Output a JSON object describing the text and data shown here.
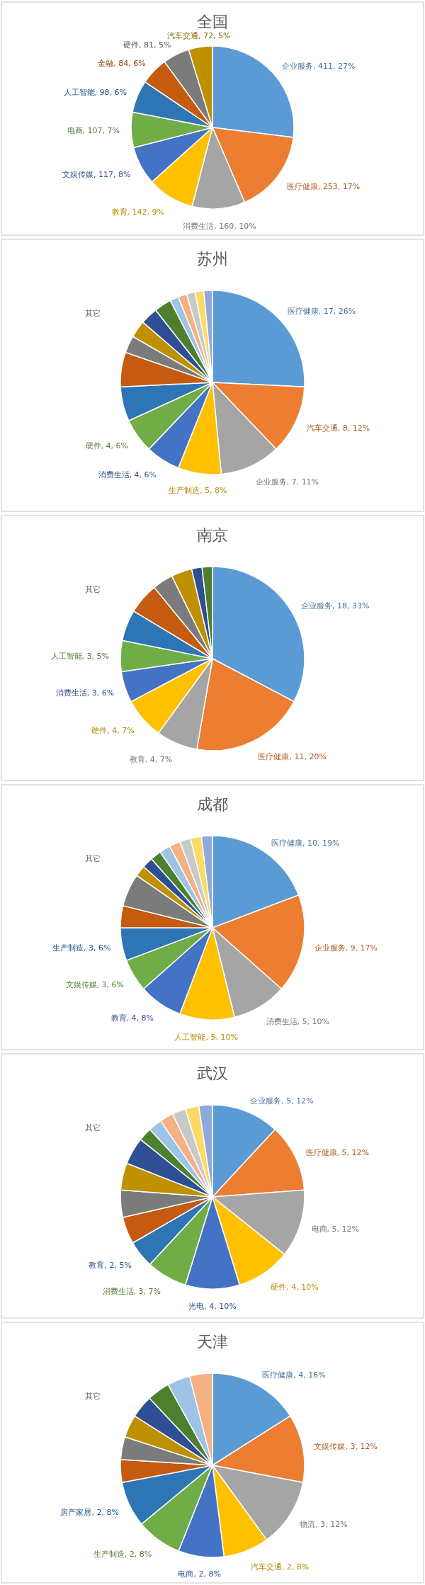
{
  "chart_data": [
    {
      "type": "pie",
      "title": "全国",
      "categories": [
        "企业服务",
        "医疗健康",
        "消费生活",
        "教育",
        "文娱传媒",
        "电商",
        "人工智能",
        "金融",
        "硬件",
        "汽车交通"
      ],
      "values": [
        411,
        253,
        160,
        142,
        117,
        107,
        98,
        84,
        81,
        72
      ],
      "colors": [
        "#5b9bd5",
        "#ed7d31",
        "#a5a5a5",
        "#ffc000",
        "#4472c4",
        "#70ad47",
        "#2e75b6",
        "#c55a11",
        "#7b7b7b",
        "#bf9000"
      ],
      "value_labels": [
        "411, 27%",
        "253, 17%",
        "160, 10%",
        "142, 9%",
        "117, 8%",
        "107, 7%",
        "98, 6%",
        "84, 6%",
        "81, 5%",
        "72, 5%"
      ]
    },
    {
      "type": "pie",
      "title": "苏州",
      "categories": [
        "医疗健康",
        "汽车交通",
        "企业服务",
        "生产制造",
        "消费生活",
        "硬件",
        null,
        null,
        null,
        null,
        null,
        null,
        null,
        null,
        null,
        null,
        null
      ],
      "values": [
        17,
        8,
        7,
        5,
        4,
        4,
        4,
        4,
        2,
        2,
        2,
        2,
        1,
        1,
        1,
        1,
        1
      ],
      "colors": [
        "#5b9bd5",
        "#ed7d31",
        "#a5a5a5",
        "#ffc000",
        "#4472c4",
        "#70ad47",
        "#2e75b6",
        "#c55a11",
        "#7b7b7b",
        "#bf9000",
        "#2f4f94",
        "#4d7f2f",
        "#9dc3e6",
        "#f4b183",
        "#c9c9c9",
        "#ffd966",
        "#8eaadb"
      ],
      "value_labels": [
        "17, 26%",
        "8, 12%",
        "7, 11%",
        "5, 8%",
        "4, 6%",
        "4, 6%",
        null,
        null,
        null,
        null,
        null,
        null,
        null,
        null,
        null,
        null,
        null
      ],
      "annotations": [
        "其它"
      ]
    },
    {
      "type": "pie",
      "title": "南京",
      "categories": [
        "企业服务",
        "医疗健康",
        "教育",
        "硬件",
        "消费生活",
        "人工智能",
        null,
        null,
        null,
        null,
        null,
        null
      ],
      "values": [
        18,
        11,
        4,
        4,
        3,
        3,
        3,
        3,
        2,
        2,
        1,
        1
      ],
      "colors": [
        "#5b9bd5",
        "#ed7d31",
        "#a5a5a5",
        "#ffc000",
        "#4472c4",
        "#70ad47",
        "#2e75b6",
        "#c55a11",
        "#7b7b7b",
        "#bf9000",
        "#2f4f94",
        "#4d7f2f"
      ],
      "value_labels": [
        "18, 33%",
        "11, 20%",
        "4, 7%",
        "4, 7%",
        "3, 6%",
        "3, 5%",
        null,
        null,
        null,
        null,
        null,
        null
      ],
      "annotations": [
        "其它"
      ]
    },
    {
      "type": "pie",
      "title": "成都",
      "categories": [
        "医疗健康",
        "企业服务",
        "消费生活",
        "人工智能",
        "教育",
        "文娱传媒",
        "生产制造",
        null,
        null,
        null,
        null,
        null,
        null,
        null,
        null,
        null,
        null
      ],
      "values": [
        10,
        9,
        5,
        5,
        4,
        3,
        3,
        2,
        3,
        1,
        1,
        1,
        1,
        1,
        1,
        1,
        1
      ],
      "colors": [
        "#5b9bd5",
        "#ed7d31",
        "#a5a5a5",
        "#ffc000",
        "#4472c4",
        "#70ad47",
        "#2e75b6",
        "#c55a11",
        "#7b7b7b",
        "#bf9000",
        "#2f4f94",
        "#4d7f2f",
        "#9dc3e6",
        "#f4b183",
        "#c9c9c9",
        "#ffd966",
        "#8eaadb"
      ],
      "value_labels": [
        "10, 19%",
        "9, 17%",
        "5, 10%",
        "5, 10%",
        "4, 8%",
        "3, 6%",
        "3, 6%",
        null,
        null,
        null,
        null,
        null,
        null,
        null,
        null,
        null,
        null
      ],
      "annotations": [
        "其它"
      ]
    },
    {
      "type": "pie",
      "title": "武汉",
      "categories": [
        "企业服务",
        "医疗健康",
        "电商",
        "硬件",
        "光电",
        "消费生活",
        "教育",
        null,
        null,
        null,
        null,
        null,
        null,
        null,
        null,
        null,
        null
      ],
      "values": [
        5,
        5,
        5,
        4,
        4,
        3,
        2,
        2,
        2,
        2,
        2,
        1,
        1,
        1,
        1,
        1,
        1
      ],
      "colors": [
        "#5b9bd5",
        "#ed7d31",
        "#a5a5a5",
        "#ffc000",
        "#4472c4",
        "#70ad47",
        "#2e75b6",
        "#c55a11",
        "#7b7b7b",
        "#bf9000",
        "#2f4f94",
        "#4d7f2f",
        "#9dc3e6",
        "#f4b183",
        "#c9c9c9",
        "#ffd966",
        "#8eaadb"
      ],
      "value_labels": [
        "5, 12%",
        "5, 12%",
        "5, 12%",
        "4, 10%",
        "4, 10%",
        "3, 7%",
        "2, 5%",
        null,
        null,
        null,
        null,
        null,
        null,
        null,
        null,
        null,
        null
      ],
      "annotations": [
        "其它"
      ]
    },
    {
      "type": "pie",
      "title": "天津",
      "categories": [
        "医疗健康",
        "文娱传媒",
        "物流",
        "汽车交通",
        "电商",
        "生产制造",
        "房产家居",
        null,
        null,
        null,
        null,
        null,
        null,
        null
      ],
      "values": [
        4,
        3,
        3,
        2,
        2,
        2,
        2,
        1,
        1,
        1,
        1,
        1,
        1,
        1
      ],
      "colors": [
        "#5b9bd5",
        "#ed7d31",
        "#a5a5a5",
        "#ffc000",
        "#4472c4",
        "#70ad47",
        "#2e75b6",
        "#c55a11",
        "#7b7b7b",
        "#bf9000",
        "#2f4f94",
        "#4d7f2f",
        "#9dc3e6",
        "#f4b183"
      ],
      "value_labels": [
        "4, 16%",
        "3, 12%",
        "3, 12%",
        "2, 8%",
        "2, 8%",
        "2, 8%",
        "2, 8%",
        null,
        null,
        null,
        null,
        null,
        null,
        null
      ],
      "annotations": [
        "其它"
      ]
    }
  ]
}
